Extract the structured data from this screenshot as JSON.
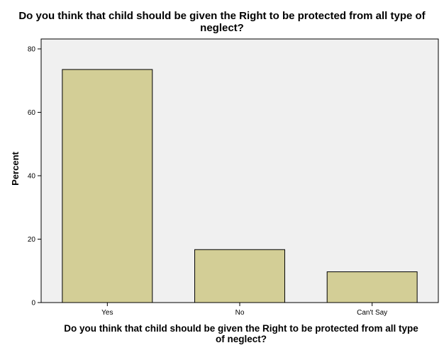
{
  "chart_data": {
    "type": "bar",
    "title_lines": [
      "Do you think that child should be given the Right to be protected from all type of",
      "neglect?"
    ],
    "xlabel_lines": [
      "Do you think that child should be given the Right to be protected from all type",
      "of neglect?"
    ],
    "ylabel": "Percent",
    "categories": [
      "Yes",
      "No",
      "Can't Say"
    ],
    "values": [
      73.5,
      16.7,
      9.7
    ],
    "ylim": [
      0,
      80
    ],
    "yticks": [
      0,
      20,
      40,
      60,
      80
    ],
    "grid": false,
    "colors": {
      "bar_fill": "#d3ce96",
      "bar_stroke": "#000000",
      "plot_background": "#f0f0f0"
    }
  }
}
